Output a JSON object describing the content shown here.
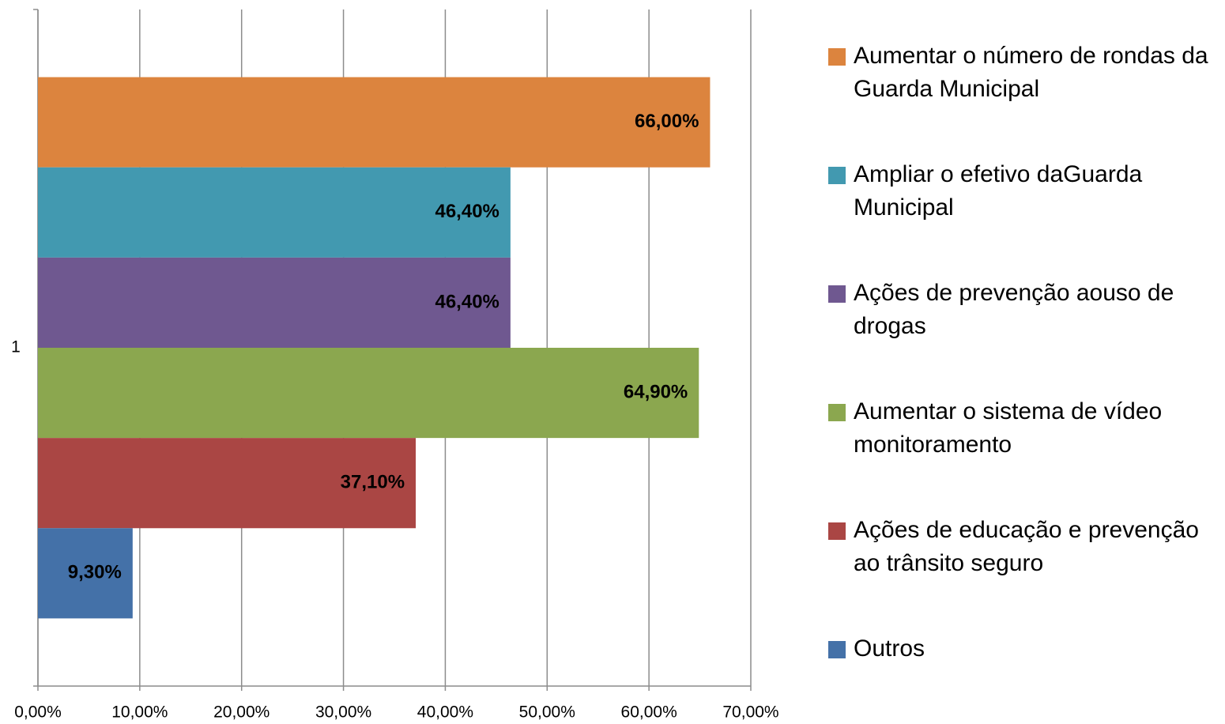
{
  "chart_data": {
    "type": "bar",
    "horizontal": true,
    "categories": [
      "1"
    ],
    "series": [
      {
        "name": "Aumentar o número de rondas da Guarda Municipal",
        "color": "#dc843e",
        "values": [
          66
        ],
        "value_labels": [
          "66,00%"
        ]
      },
      {
        "name": "Ampliar o efetivo daGuarda Municipal",
        "color": "#4299b0",
        "values": [
          46.4
        ],
        "value_labels": [
          "46,40%"
        ]
      },
      {
        "name": "Ações de prevenção aouso de drogas",
        "color": "#6f5890",
        "values": [
          46.4
        ],
        "value_labels": [
          "46,40%"
        ]
      },
      {
        "name": "Aumentar o sistema de vídeo monitoramento",
        "color": "#8ba74f",
        "values": [
          64.9
        ],
        "value_labels": [
          "64,90%"
        ]
      },
      {
        "name": "Ações de educação e prevenção ao trânsito seguro",
        "color": "#aa4644",
        "values": [
          37.1
        ],
        "value_labels": [
          "37,10%"
        ]
      },
      {
        "name": "Outros",
        "color": "#4471a8",
        "values": [
          9.3
        ],
        "value_labels": [
          "9,30%"
        ]
      }
    ],
    "xlim": [
      0,
      70
    ],
    "xticks": [
      {
        "value": 0,
        "label": "0,00%"
      },
      {
        "value": 10,
        "label": "10,00%"
      },
      {
        "value": 20,
        "label": "20,00%"
      },
      {
        "value": 30,
        "label": "30,00%"
      },
      {
        "value": 40,
        "label": "40,00%"
      },
      {
        "value": 50,
        "label": "50,00%"
      },
      {
        "value": 60,
        "label": "60,00%"
      },
      {
        "value": 70,
        "label": "70,00%"
      }
    ],
    "grid": true,
    "legend": "right"
  }
}
